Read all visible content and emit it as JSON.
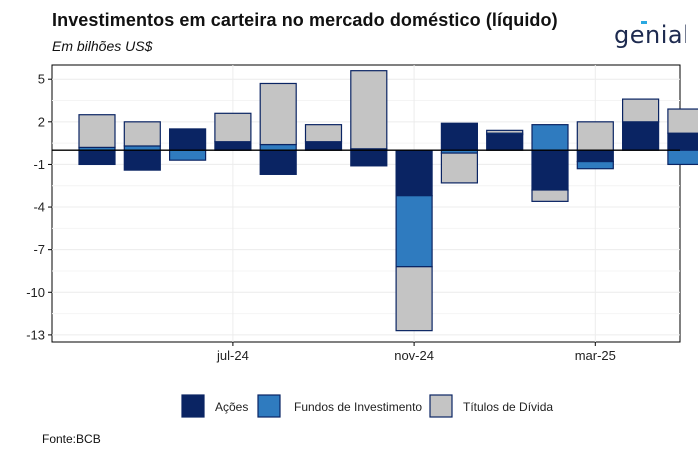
{
  "title": "Investimentos em carteira no mercado doméstico (líquido)",
  "subtitle": "Em bilhões US$",
  "source": "Fonte:BCB",
  "logo": {
    "text": "genial",
    "accent": "#2aa8e0"
  },
  "colors": {
    "acoes": "#0a2463",
    "fundos": "#2f7bbf",
    "titulos": "#c4c4c4",
    "border": "#0a2463"
  },
  "chart_data": {
    "type": "bar",
    "stacked": true,
    "categories": [
      "2024-04",
      "2024-05",
      "2024-06",
      "2024-07",
      "2024-08",
      "2024-09",
      "2024-10",
      "2024-11",
      "2024-12",
      "2025-01",
      "2025-02",
      "2025-03",
      "2025-04",
      "2025-05"
    ],
    "x_tick_labels": [
      {
        "category": "2024-07",
        "label": "jul-24"
      },
      {
        "category": "2024-11",
        "label": "nov-24"
      },
      {
        "category": "2025-03",
        "label": "mar-25"
      }
    ],
    "series": [
      {
        "name": "Ações",
        "color": "#0a2463",
        "values": [
          -1.0,
          -1.4,
          1.5,
          0.6,
          -1.7,
          0.6,
          -1.1,
          -3.2,
          1.9,
          1.1,
          -2.8,
          -0.8,
          2.0,
          1.2
        ]
      },
      {
        "name": "Fundos de Investimento",
        "color": "#2f7bbf",
        "values": [
          0.2,
          0.3,
          -0.7,
          0.0,
          0.4,
          0.0,
          0.1,
          -5.0,
          -0.2,
          0.1,
          1.8,
          -0.5,
          0.0,
          -1.0
        ]
      },
      {
        "name": "Títulos de Dívida",
        "color": "#c4c4c4",
        "values": [
          2.3,
          1.7,
          0.0,
          2.0,
          4.3,
          1.2,
          5.5,
          -4.5,
          -2.1,
          0.2,
          -0.8,
          2.0,
          1.6,
          1.7
        ]
      }
    ],
    "y_ticks": [
      5,
      2,
      -1,
      -4,
      -7,
      -10,
      -13
    ],
    "ylim": [
      -13.5,
      6.0
    ],
    "grid": true,
    "legend_position": "bottom",
    "xlabel": "",
    "ylabel": ""
  }
}
